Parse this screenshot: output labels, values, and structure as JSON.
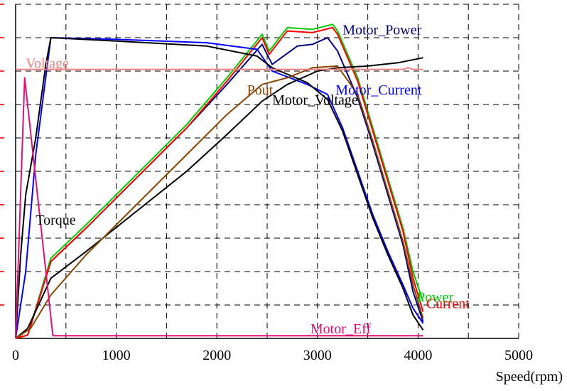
{
  "chart_data": {
    "type": "line",
    "xlabel": "Speed(rpm)",
    "xlim": [
      0,
      5000
    ],
    "x_ticks": [
      "0",
      "1000",
      "2000",
      "3000",
      "4000",
      "5000"
    ],
    "ylim": [
      0,
      10
    ],
    "grid": true,
    "series": [
      {
        "name": "Motor_Power",
        "color": "#000080",
        "label_at": [
          3250,
          9.1
        ],
        "points": [
          [
            0,
            0
          ],
          [
            120,
            0.1
          ],
          [
            350,
            2.3
          ],
          [
            700,
            3.3
          ],
          [
            1200,
            4.8
          ],
          [
            1700,
            6.3
          ],
          [
            2100,
            7.6
          ],
          [
            2450,
            8.8
          ],
          [
            2550,
            8.2
          ],
          [
            2800,
            8.75
          ],
          [
            2950,
            8.8
          ],
          [
            3100,
            9.0
          ],
          [
            3200,
            8.6
          ],
          [
            3400,
            7.2
          ],
          [
            3550,
            5.8
          ],
          [
            3700,
            4.3
          ],
          [
            3850,
            2.8
          ],
          [
            3950,
            1.4
          ],
          [
            4050,
            0.5
          ]
        ]
      },
      {
        "name": "Power",
        "color": "#00cc00",
        "label_at": [
          3990,
          1.1
        ],
        "points": [
          [
            0,
            0
          ],
          [
            120,
            0.1
          ],
          [
            350,
            2.4
          ],
          [
            700,
            3.4
          ],
          [
            1200,
            4.9
          ],
          [
            1700,
            6.4
          ],
          [
            2100,
            7.8
          ],
          [
            2450,
            9.1
          ],
          [
            2520,
            8.6
          ],
          [
            2700,
            9.3
          ],
          [
            2950,
            9.25
          ],
          [
            3150,
            9.4
          ],
          [
            3200,
            9.2
          ],
          [
            3400,
            7.8
          ],
          [
            3550,
            6.3
          ],
          [
            3700,
            4.8
          ],
          [
            3850,
            3.3
          ],
          [
            3950,
            2.0
          ],
          [
            4050,
            1.1
          ]
        ]
      },
      {
        "name": "Current",
        "color": "#ff0000",
        "label_at": [
          4080,
          0.9
        ],
        "points": [
          [
            0,
            0
          ],
          [
            120,
            0.1
          ],
          [
            350,
            2.3
          ],
          [
            700,
            3.3
          ],
          [
            1200,
            4.8
          ],
          [
            1700,
            6.3
          ],
          [
            2100,
            7.7
          ],
          [
            2450,
            9.0
          ],
          [
            2520,
            8.5
          ],
          [
            2700,
            9.2
          ],
          [
            2950,
            9.15
          ],
          [
            3150,
            9.3
          ],
          [
            3200,
            9.1
          ],
          [
            3400,
            7.7
          ],
          [
            3550,
            6.2
          ],
          [
            3700,
            4.7
          ],
          [
            3850,
            3.2
          ],
          [
            3950,
            1.8
          ],
          [
            4050,
            0.8
          ]
        ]
      },
      {
        "name": "Motor_Current",
        "color": "#0000ff",
        "label_at": [
          3180,
          7.3
        ],
        "points": [
          [
            0,
            0
          ],
          [
            100,
            2.0
          ],
          [
            200,
            5.5
          ],
          [
            350,
            9.0
          ],
          [
            1000,
            8.95
          ],
          [
            1900,
            8.85
          ],
          [
            2400,
            8.65
          ],
          [
            2550,
            8.0
          ],
          [
            2900,
            7.6
          ],
          [
            3100,
            7.3
          ],
          [
            3250,
            6.3
          ],
          [
            3400,
            5.0
          ],
          [
            3550,
            3.7
          ],
          [
            3700,
            2.6
          ],
          [
            3850,
            1.6
          ],
          [
            3950,
            0.9
          ],
          [
            4050,
            0.45
          ]
        ]
      },
      {
        "name": "Torque",
        "color": "#000000",
        "label_at": [
          200,
          3.4
        ],
        "points": [
          [
            0,
            0
          ],
          [
            50,
            2.5
          ],
          [
            100,
            4.3
          ],
          [
            200,
            6.0
          ],
          [
            300,
            8.2
          ],
          [
            350,
            9.0
          ],
          [
            1000,
            8.9
          ],
          [
            1900,
            8.75
          ],
          [
            2400,
            8.45
          ],
          [
            2550,
            8.1
          ],
          [
            2900,
            7.65
          ],
          [
            3100,
            7.15
          ],
          [
            3250,
            6.2
          ],
          [
            3400,
            4.9
          ],
          [
            3550,
            3.6
          ],
          [
            3700,
            2.5
          ],
          [
            3850,
            1.5
          ],
          [
            3950,
            0.7
          ],
          [
            4050,
            0.25
          ]
        ]
      },
      {
        "name": "Motor_Voltage",
        "color": "#000000",
        "label_at": [
          2550,
          7.0
        ],
        "points": [
          [
            0,
            0
          ],
          [
            120,
            0.3
          ],
          [
            350,
            1.8
          ],
          [
            700,
            2.6
          ],
          [
            1200,
            3.8
          ],
          [
            1700,
            5.0
          ],
          [
            2100,
            6.1
          ],
          [
            2450,
            7.1
          ],
          [
            2700,
            7.6
          ],
          [
            3000,
            8.0
          ],
          [
            3200,
            8.1
          ],
          [
            3500,
            8.15
          ],
          [
            3800,
            8.25
          ],
          [
            4050,
            8.4
          ]
        ]
      },
      {
        "name": "Pout",
        "color": "#884400",
        "label_at": [
          2300,
          7.3
        ],
        "points": [
          [
            0,
            0
          ],
          [
            150,
            0.3
          ],
          [
            350,
            1.3
          ],
          [
            700,
            2.5
          ],
          [
            1200,
            4.0
          ],
          [
            1700,
            5.5
          ],
          [
            2100,
            6.7
          ],
          [
            2450,
            7.6
          ],
          [
            2700,
            7.8
          ],
          [
            2950,
            8.1
          ],
          [
            3200,
            8.15
          ],
          [
            3400,
            7.3
          ],
          [
            3550,
            5.9
          ],
          [
            3700,
            4.4
          ],
          [
            3850,
            2.9
          ],
          [
            3950,
            1.6
          ],
          [
            4050,
            0.6
          ]
        ]
      },
      {
        "name": "Voltage",
        "color": "#f08080",
        "label_at": [
          100,
          8.1
        ],
        "points": [
          [
            0,
            8.05
          ],
          [
            3850,
            8.05
          ],
          [
            3900,
            8.1
          ],
          [
            3950,
            8.05
          ],
          [
            4050,
            8.05
          ]
        ]
      },
      {
        "name": "Motor_Eff",
        "color": "#e0107a",
        "label_at": [
          2930,
          0.15
        ],
        "points": [
          [
            0,
            0
          ],
          [
            90,
            7.8
          ],
          [
            370,
            0.08
          ],
          [
            4050,
            0.08
          ]
        ]
      }
    ]
  }
}
